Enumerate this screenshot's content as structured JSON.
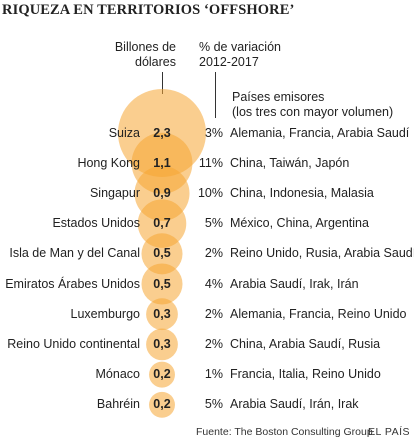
{
  "chart_data": {
    "type": "bubble",
    "title": "RIQUEZA EN TERRITORIOS ‘OFFSHORE’",
    "column_headers": {
      "value": "Billones de dólares",
      "value_line1": "Billones de",
      "value_line2": "dólares",
      "change": "% de variación 2012-2017",
      "change_line1": "% de variación",
      "change_line2": "2012-2017",
      "emitters": "Países emisores (los tres con mayor volumen)",
      "emitters_line1": "Países emisores",
      "emitters_line2": "(los tres con mayor volumen)"
    },
    "rows": [
      {
        "territory": "Suiza",
        "value": 2.3,
        "value_label": "2,3",
        "change_label": "3%",
        "emitters": "Alemania, Francia, Arabia Saudí"
      },
      {
        "territory": "Hong Kong",
        "value": 1.1,
        "value_label": "1,1",
        "change_label": "11%",
        "emitters": "China, Taiwán, Japón"
      },
      {
        "territory": "Singapur",
        "value": 0.9,
        "value_label": "0,9",
        "change_label": "10%",
        "emitters": "China, Indonesia, Malasia"
      },
      {
        "territory": "Estados Unidos",
        "value": 0.7,
        "value_label": "0,7",
        "change_label": "5%",
        "emitters": "México, China, Argentina"
      },
      {
        "territory": "Isla de Man y del Canal",
        "value": 0.5,
        "value_label": "0,5",
        "change_label": "2%",
        "emitters": "Reino Unido, Rusia, Arabia Saudí"
      },
      {
        "territory": "Emiratos Árabes Unidos",
        "value": 0.5,
        "value_label": "0,5",
        "change_label": "4%",
        "emitters": "Arabia Saudí, Irak, Irán"
      },
      {
        "territory": "Luxemburgo",
        "value": 0.3,
        "value_label": "0,3",
        "change_label": "2%",
        "emitters": "Alemania, Francia, Reino Unido"
      },
      {
        "territory": "Reino Unido continental",
        "value": 0.3,
        "value_label": "0,3",
        "change_label": "2%",
        "emitters": "China, Arabia Saudí, Rusia"
      },
      {
        "territory": "Mónaco",
        "value": 0.2,
        "value_label": "0,2",
        "change_label": "1%",
        "emitters": "Francia, Italia, Reino Unido"
      },
      {
        "territory": "Bahréin",
        "value": 0.2,
        "value_label": "0,2",
        "change_label": "5%",
        "emitters": "Arabia Saudí, Irán, Irak"
      }
    ],
    "colors": {
      "bubble": "#f5a533",
      "bubble_fill_opacity": "0.55",
      "bubble_overlap": "#f28c1a"
    }
  },
  "footer": {
    "source": "Fuente: The Boston Consulting Group.",
    "brand": "EL PAÍS"
  }
}
